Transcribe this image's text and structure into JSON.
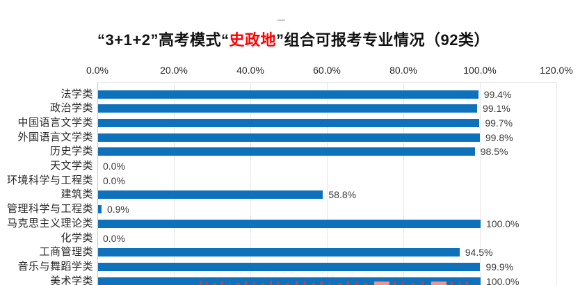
{
  "page": {
    "background": "#FFFFFF"
  },
  "chart_data": {
    "type": "bar",
    "orientation": "horizontal",
    "title": {
      "part1": "“3+1+2”高考模式“",
      "highlight": "史政地",
      "part3": "”组合可报考专业情况（92类）",
      "highlight_color": "#FF0000"
    },
    "categories": [
      "法学类",
      "政治学类",
      "中国语言文学类",
      "外国语言文学类",
      "历史学类",
      "天文学类",
      "环境科学与工程类",
      "建筑类",
      "管理科学与工程类",
      "马克思主义理论类",
      "化学类",
      "工商管理类",
      "音乐与舞蹈学类",
      "美术学类"
    ],
    "values": [
      99.4,
      99.1,
      99.7,
      99.8,
      98.5,
      0.0,
      0.0,
      58.8,
      0.9,
      100.0,
      0.0,
      94.5,
      99.9,
      100.0
    ],
    "value_labels": [
      "99.4%",
      "99.1%",
      "99.7%",
      "99.8%",
      "98.5%",
      "0.0%",
      "0.0%",
      "58.8%",
      "0.9%",
      "100.0%",
      "0.0%",
      "94.5%",
      "99.9%",
      "100.0%"
    ],
    "x_tick_labels": [
      "0.0%",
      "20.0%",
      "40.0%",
      "60.0%",
      "80.0%",
      "100.0%",
      "120.0%"
    ],
    "x_tick_values": [
      0,
      20,
      40,
      60,
      80,
      100,
      120
    ],
    "xlim": [
      0,
      120
    ],
    "bar_color": "#0E71BB",
    "grid": true,
    "legend_position": "none"
  }
}
